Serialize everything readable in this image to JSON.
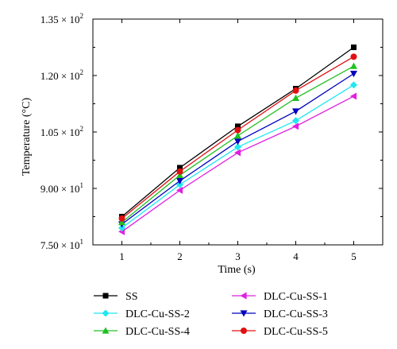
{
  "chart_data": {
    "type": "line",
    "xlabel": "Time (s)",
    "ylabel": "Temperature (°C)",
    "xlim": [
      0.5,
      5.5
    ],
    "ylim": [
      75,
      135
    ],
    "x": [
      1,
      2,
      3,
      4,
      5
    ],
    "xticks": [
      {
        "value": 1,
        "label": "1"
      },
      {
        "value": 2,
        "label": "2"
      },
      {
        "value": 3,
        "label": "3"
      },
      {
        "value": 4,
        "label": "4"
      },
      {
        "value": 5,
        "label": "5"
      }
    ],
    "yticks": [
      {
        "value": 75,
        "mantissa": "7.50 × 10",
        "exp": "1"
      },
      {
        "value": 90,
        "mantissa": "9.00 × 10",
        "exp": "1"
      },
      {
        "value": 105,
        "mantissa": "1.05 × 10",
        "exp": "2"
      },
      {
        "value": 120,
        "mantissa": "1.20 × 10",
        "exp": "2"
      },
      {
        "value": 135,
        "mantissa": "1.35 × 10",
        "exp": "2"
      }
    ],
    "legend_position": "bottom",
    "series": [
      {
        "name": "SS",
        "color": "#000000",
        "marker": "square",
        "values": [
          82.5,
          95.5,
          106.5,
          116.5,
          127.5
        ]
      },
      {
        "name": "DLC-Cu-SS-1",
        "color": "#e020e0",
        "marker": "triangle-left",
        "values": [
          78.5,
          89.5,
          99.5,
          106.5,
          114.5
        ]
      },
      {
        "name": "DLC-Cu-SS-2",
        "color": "#20e8f0",
        "marker": "diamond",
        "values": [
          79.5,
          91.0,
          101.0,
          108.0,
          117.5
        ]
      },
      {
        "name": "DLC-Cu-SS-3",
        "color": "#0000c0",
        "marker": "triangle-down",
        "values": [
          80.5,
          92.0,
          102.5,
          110.5,
          120.5
        ]
      },
      {
        "name": "DLC-Cu-SS-4",
        "color": "#20c020",
        "marker": "triangle-up",
        "values": [
          81.0,
          93.5,
          104.0,
          114.0,
          122.5
        ]
      },
      {
        "name": "DLC-Cu-SS-5",
        "color": "#e01010",
        "marker": "circle",
        "values": [
          82.0,
          94.5,
          105.5,
          116.0,
          125.0
        ]
      }
    ]
  }
}
